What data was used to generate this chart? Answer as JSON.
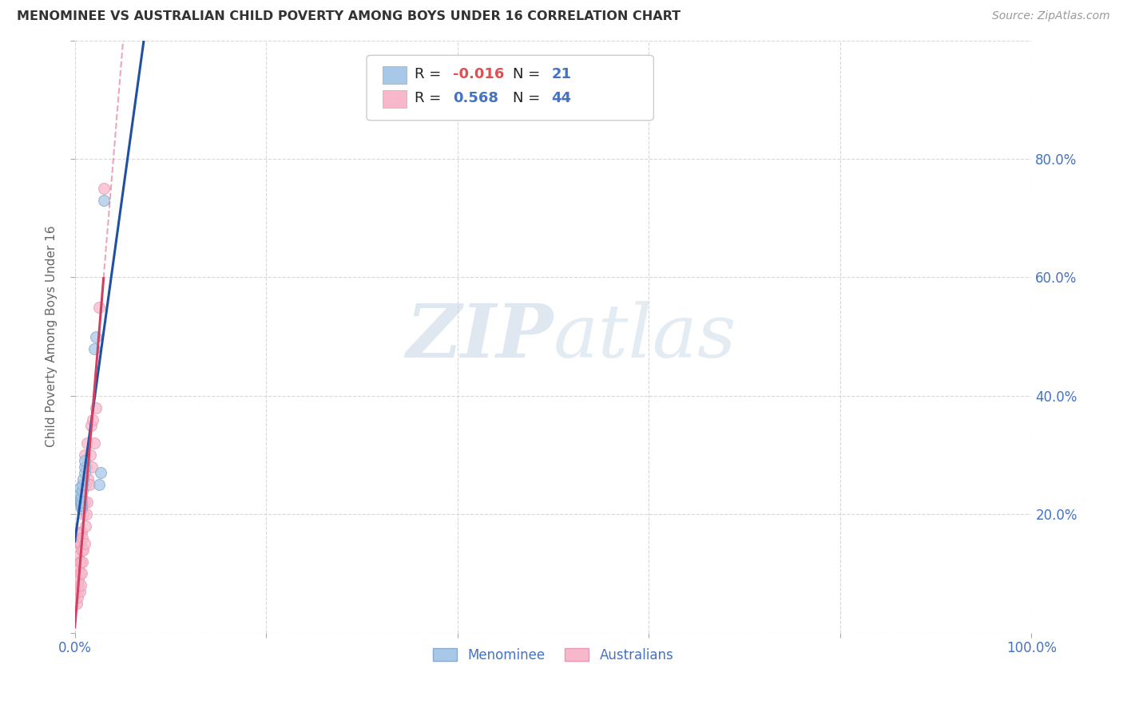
{
  "title": "MENOMINEE VS AUSTRALIAN CHILD POVERTY AMONG BOYS UNDER 16 CORRELATION CHART",
  "source": "Source: ZipAtlas.com",
  "ylabel": "Child Poverty Among Boys Under 16",
  "xlim": [
    0.0,
    1.0
  ],
  "ylim": [
    0.0,
    1.0
  ],
  "xticklabels": [
    "0.0%",
    "",
    "",
    "",
    "",
    "100.0%"
  ],
  "yticklabels_right": [
    "",
    "20.0%",
    "40.0%",
    "60.0%",
    "80.0%",
    ""
  ],
  "watermark_zip": "ZIP",
  "watermark_atlas": "atlas",
  "background_color": "#ffffff",
  "grid_color": "#d8d8d8",
  "menominee_x": [
    0.005,
    0.005,
    0.005,
    0.006,
    0.006,
    0.006,
    0.007,
    0.007,
    0.007,
    0.007,
    0.008,
    0.008,
    0.009,
    0.01,
    0.01,
    0.01,
    0.02,
    0.022,
    0.025,
    0.027,
    0.03
  ],
  "menominee_y": [
    0.225,
    0.235,
    0.245,
    0.215,
    0.22,
    0.225,
    0.21,
    0.215,
    0.22,
    0.23,
    0.24,
    0.25,
    0.26,
    0.27,
    0.28,
    0.29,
    0.48,
    0.5,
    0.25,
    0.27,
    0.73
  ],
  "australian_x": [
    0.002,
    0.003,
    0.003,
    0.003,
    0.004,
    0.004,
    0.004,
    0.004,
    0.004,
    0.005,
    0.005,
    0.005,
    0.005,
    0.005,
    0.006,
    0.006,
    0.006,
    0.007,
    0.007,
    0.007,
    0.008,
    0.008,
    0.008,
    0.009,
    0.009,
    0.01,
    0.01,
    0.01,
    0.011,
    0.011,
    0.012,
    0.012,
    0.013,
    0.013,
    0.014,
    0.015,
    0.016,
    0.017,
    0.018,
    0.019,
    0.02,
    0.022,
    0.025,
    0.03
  ],
  "australian_y": [
    0.05,
    0.07,
    0.08,
    0.06,
    0.08,
    0.09,
    0.11,
    0.13,
    0.15,
    0.07,
    0.1,
    0.12,
    0.15,
    0.17,
    0.08,
    0.12,
    0.15,
    0.1,
    0.14,
    0.17,
    0.12,
    0.16,
    0.22,
    0.14,
    0.2,
    0.15,
    0.22,
    0.3,
    0.18,
    0.25,
    0.2,
    0.28,
    0.22,
    0.32,
    0.26,
    0.25,
    0.3,
    0.35,
    0.28,
    0.36,
    0.32,
    0.38,
    0.55,
    0.75
  ],
  "menominee_color": "#a8c8e8",
  "menominee_edge": "#88aad0",
  "australian_color": "#f8b8cc",
  "australian_edge": "#e898b0",
  "menominee_line_color": "#2050a0",
  "australian_line_color": "#d04060",
  "marker_size": 100,
  "marker_alpha": 0.75,
  "legend_label_menominee": "Menominee",
  "legend_label_australian": "Australians",
  "legend_R_men": "R = -0.016",
  "legend_N_men": "N =  21",
  "legend_R_aus": "R =  0.568",
  "legend_N_aus": "N = 44"
}
